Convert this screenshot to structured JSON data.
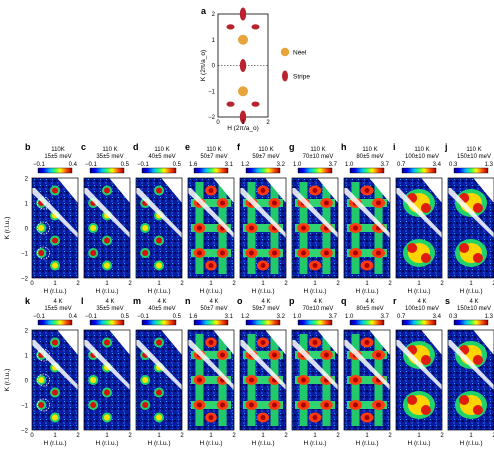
{
  "colors": {
    "neel": "#e8a33a",
    "stripe": "#b8232f",
    "frame": "#000000"
  },
  "inset": {
    "panel_label": "a",
    "ylabel": "K (2π/a_o)",
    "xlabel": "H (2π/a_o)",
    "xticks": [
      "0",
      "1",
      "2"
    ],
    "yticks": [
      "2",
      "1",
      "0",
      "−1",
      "−2"
    ],
    "legend": [
      {
        "label": "Néel",
        "color": "#e8a33a",
        "shape": "circle"
      },
      {
        "label": "Stripe",
        "color": "#b8232f",
        "shape": "ellipse"
      }
    ],
    "neel_points": [
      [
        1,
        1
      ],
      [
        1,
        -1
      ]
    ],
    "stripe_points": [
      [
        1,
        2
      ],
      [
        1,
        0
      ],
      [
        1,
        -2
      ],
      [
        0.5,
        1.5
      ],
      [
        1.5,
        1.5
      ],
      [
        0.5,
        -1.5
      ],
      [
        1.5,
        -1.5
      ]
    ]
  },
  "axes": {
    "ylabel": "K (r.l.u.)",
    "xlabel": "H (r.l.u.)",
    "xticks": [
      "0",
      "1",
      "2"
    ],
    "yticks": [
      "2",
      "1",
      "0",
      "−1",
      "−2"
    ]
  },
  "row_top": [
    {
      "label": "b",
      "temp": "110K",
      "energy": "15±5 meV",
      "cmin": "−0.1",
      "cmax": "0.4"
    },
    {
      "label": "c",
      "temp": "110 K",
      "energy": "35±5 meV",
      "cmin": "−0.1",
      "cmax": "0.5"
    },
    {
      "label": "d",
      "temp": "110 K",
      "energy": "40±5 meV",
      "cmin": "−0.1",
      "cmax": "0.5"
    },
    {
      "label": "e",
      "temp": "110 K",
      "energy": "50±7 meV",
      "cmin": "1.6",
      "cmax": "3.1"
    },
    {
      "label": "f",
      "temp": "110 K",
      "energy": "59±7 meV",
      "cmin": "1.2",
      "cmax": "3.2"
    },
    {
      "label": "g",
      "temp": "110 K",
      "energy": "70±10 meV",
      "cmin": "1.0",
      "cmax": "3.7"
    },
    {
      "label": "h",
      "temp": "110 K",
      "energy": "80±5 meV",
      "cmin": "1.0",
      "cmax": "3.7"
    },
    {
      "label": "i",
      "temp": "110 K",
      "energy": "100±10 meV",
      "cmin": "0.7",
      "cmax": "3.4"
    },
    {
      "label": "j",
      "temp": "110 K",
      "energy": "150±10 meV",
      "cmin": "0.3",
      "cmax": "1.3"
    }
  ],
  "row_bottom": [
    {
      "label": "k",
      "temp": "4 K",
      "energy": "15±5 meV",
      "cmin": "−0.1",
      "cmax": "0.4"
    },
    {
      "label": "l",
      "temp": "4 K",
      "energy": "35±5 meV",
      "cmin": "−0.1",
      "cmax": "0.5"
    },
    {
      "label": "m",
      "temp": "4 K",
      "energy": "40±5 meV",
      "cmin": "−0.1",
      "cmax": "0.5"
    },
    {
      "label": "n",
      "temp": "4 K",
      "energy": "50±7 meV",
      "cmin": "1.6",
      "cmax": "3.1"
    },
    {
      "label": "o",
      "temp": "4 K",
      "energy": "59±7 meV",
      "cmin": "1.2",
      "cmax": "3.2"
    },
    {
      "label": "p",
      "temp": "4 K",
      "energy": "70±10 meV",
      "cmin": "1.0",
      "cmax": "3.7"
    },
    {
      "label": "q",
      "temp": "4 K",
      "energy": "80±5 meV",
      "cmin": "1.0",
      "cmax": "3.7"
    },
    {
      "label": "r",
      "temp": "4 K",
      "energy": "100±10 meV",
      "cmin": "0.7",
      "cmax": "3.4"
    },
    {
      "label": "s",
      "temp": "4 K",
      "energy": "150±10 meV",
      "cmin": "0.3",
      "cmax": "1.3"
    }
  ]
}
